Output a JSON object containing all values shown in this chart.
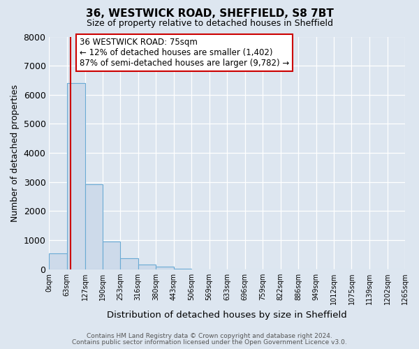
{
  "title": "36, WESTWICK ROAD, SHEFFIELD, S8 7BT",
  "subtitle": "Size of property relative to detached houses in Sheffield",
  "xlabel": "Distribution of detached houses by size in Sheffield",
  "ylabel": "Number of detached properties",
  "bar_color": "#cddaea",
  "bar_edge_color": "#6aaad4",
  "background_color": "#dde6f0",
  "grid_color": "#ffffff",
  "bin_edges": [
    0,
    63,
    127,
    190,
    253,
    316,
    380,
    443,
    506,
    569,
    633,
    696,
    759,
    822,
    886,
    949,
    1012,
    1075,
    1139,
    1202,
    1265
  ],
  "bin_labels": [
    "0sqm",
    "63sqm",
    "127sqm",
    "190sqm",
    "253sqm",
    "316sqm",
    "380sqm",
    "443sqm",
    "506sqm",
    "569sqm",
    "633sqm",
    "696sqm",
    "759sqm",
    "822sqm",
    "886sqm",
    "949sqm",
    "1012sqm",
    "1075sqm",
    "1139sqm",
    "1202sqm",
    "1265sqm"
  ],
  "bar_heights": [
    550,
    6400,
    2920,
    960,
    370,
    175,
    85,
    10,
    0,
    0,
    0,
    0,
    0,
    0,
    0,
    0,
    0,
    0,
    0,
    0
  ],
  "ylim": [
    0,
    8000
  ],
  "yticks": [
    0,
    1000,
    2000,
    3000,
    4000,
    5000,
    6000,
    7000,
    8000
  ],
  "red_line_x": 75,
  "annotation_title": "36 WESTWICK ROAD: 75sqm",
  "annotation_line1": "← 12% of detached houses are smaller (1,402)",
  "annotation_line2": "87% of semi-detached houses are larger (9,782) →",
  "annotation_box_color": "#ffffff",
  "annotation_box_edge": "#cc0000",
  "footer1": "Contains HM Land Registry data © Crown copyright and database right 2024.",
  "footer2": "Contains public sector information licensed under the Open Government Licence v3.0."
}
